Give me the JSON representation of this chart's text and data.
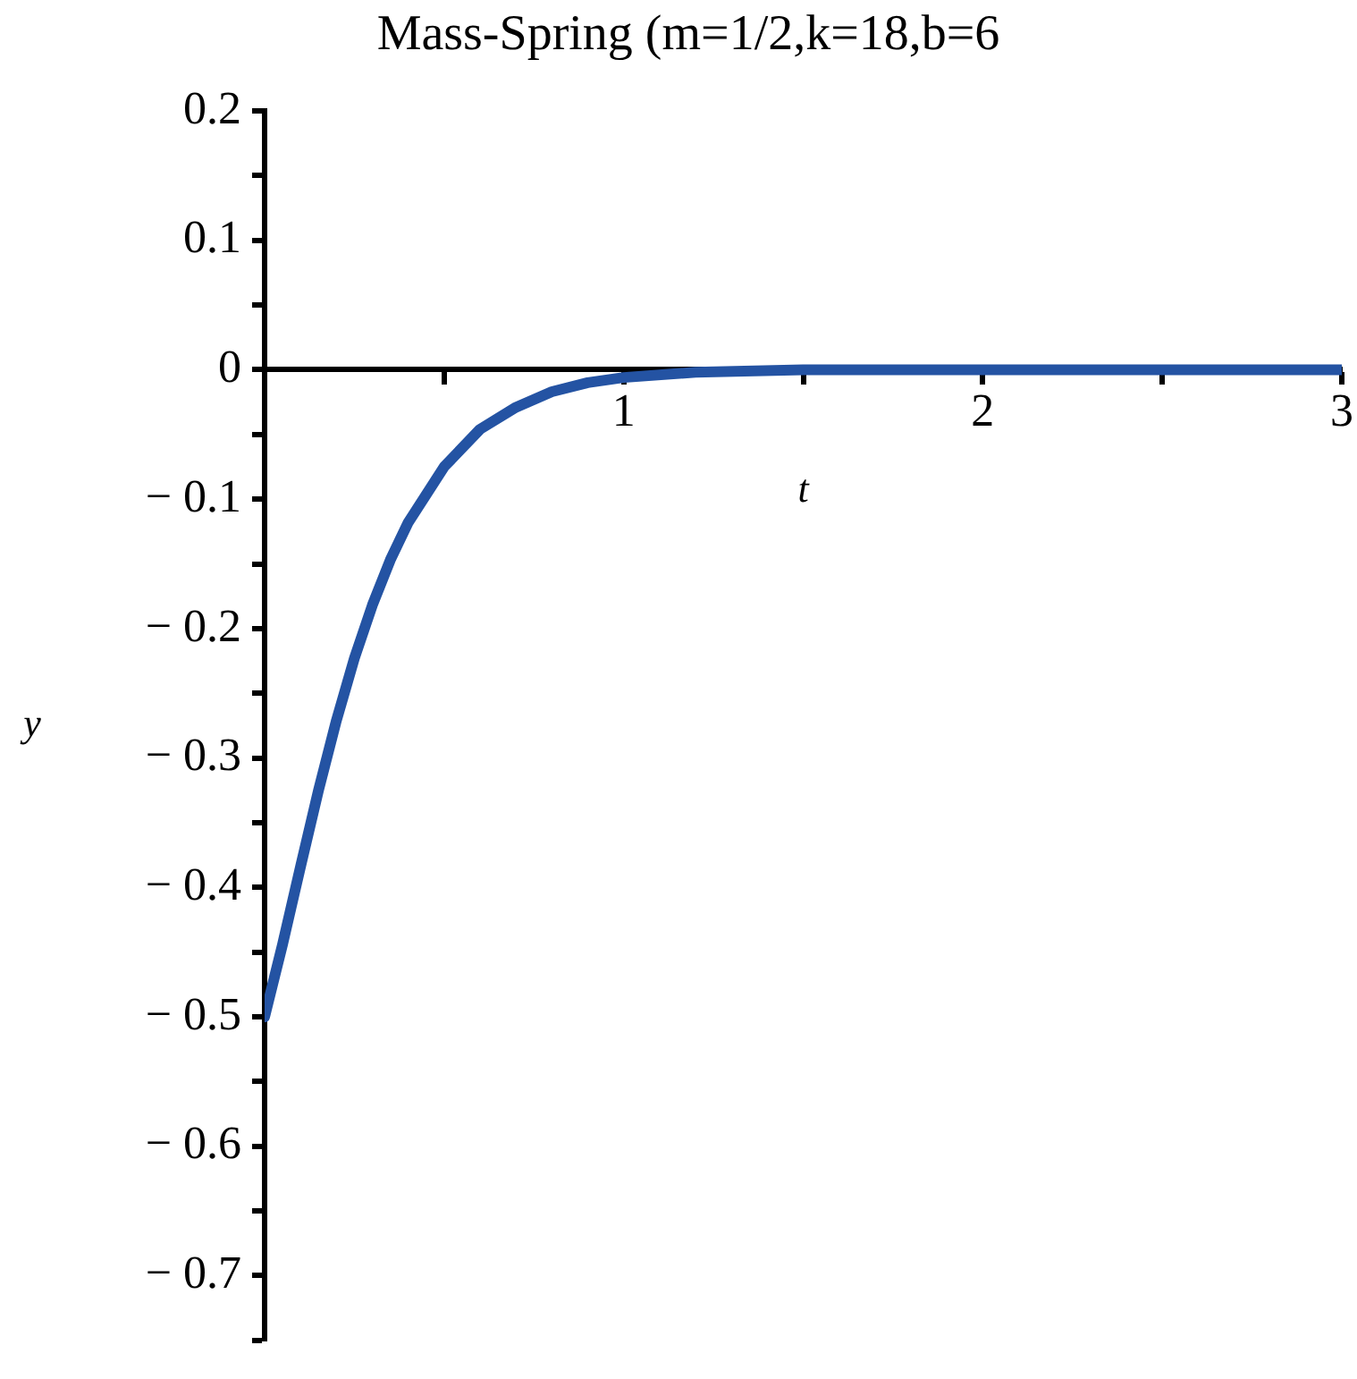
{
  "chart_data": {
    "type": "line",
    "title": "Mass-Spring (m=1/2,k=18,b=6",
    "xlabel": "t",
    "ylabel": "y",
    "x": [
      0,
      0.05,
      0.1,
      0.15,
      0.2,
      0.25,
      0.3,
      0.35,
      0.4,
      0.5,
      0.6,
      0.7,
      0.8,
      0.9,
      1,
      1.2,
      1.5,
      2,
      3
    ],
    "series": [
      {
        "color": "#2453a3",
        "values": [
          -0.5,
          -0.444,
          -0.384,
          -0.325,
          -0.271,
          -0.223,
          -0.182,
          -0.147,
          -0.118,
          -0.075,
          -0.046,
          -0.029,
          -0.017,
          -0.01,
          -0.006,
          -0.002,
          0,
          0,
          0
        ]
      }
    ],
    "xlim": [
      0,
      3
    ],
    "ylim": [
      -0.75,
      0.2
    ],
    "xticks": [
      {
        "value": 0.5,
        "label": null
      },
      1,
      {
        "value": 1.5,
        "label": null
      },
      2,
      {
        "value": 2.5,
        "label": null
      },
      3
    ],
    "yticks": [
      {
        "value": -0.75,
        "label": null
      },
      -0.7,
      {
        "value": -0.65,
        "label": null
      },
      -0.6,
      {
        "value": -0.55,
        "label": null
      },
      -0.5,
      {
        "value": -0.45,
        "label": null
      },
      -0.4,
      {
        "value": -0.35,
        "label": null
      },
      -0.3,
      {
        "value": -0.25,
        "label": null
      },
      -0.2,
      {
        "value": -0.15,
        "label": null
      },
      -0.1,
      {
        "value": -0.05,
        "label": null
      },
      0,
      {
        "value": 0.05,
        "label": null
      },
      0.1,
      {
        "value": 0.15,
        "label": null
      },
      0.2
    ],
    "grid": false,
    "legend": false,
    "marker": "none",
    "line_style": "solid"
  }
}
